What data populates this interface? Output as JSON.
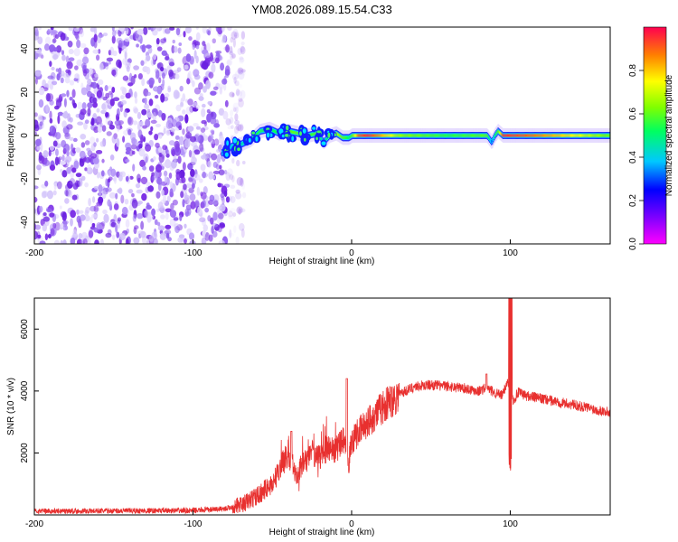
{
  "figure_title": "YM08.2026.089.15.54.C33",
  "colors": {
    "signal": "#e8302f",
    "noise": "#7a2ee6",
    "axis": "#000000"
  },
  "chart_data": [
    {
      "type": "heatmap",
      "name": "spectrogram",
      "xlabel": "Height of straight line (km)",
      "ylabel": "Frequency (Hz)",
      "xlim": [
        -200,
        163
      ],
      "ylim": [
        -50,
        50
      ],
      "xticks": [
        -200,
        -100,
        0,
        100
      ],
      "xtick_labels": [
        "-200",
        "-100",
        "0",
        "100"
      ],
      "yticks": [
        -40,
        -20,
        0,
        20,
        40
      ],
      "ytick_labels": [
        "-40",
        "-20",
        "0",
        "20",
        "40"
      ],
      "noise_region_x": [
        -200,
        -78
      ],
      "ridge": {
        "x": [
          -82,
          -76,
          -70,
          -64,
          -58,
          -52,
          -46,
          -40,
          -34,
          -28,
          -22,
          -18,
          -14,
          -10,
          -6,
          -2,
          0,
          4,
          10,
          30,
          60,
          85,
          88,
          90,
          92,
          95,
          110,
          140,
          163
        ],
        "freq": [
          -8,
          -5,
          -4,
          -2,
          2,
          3,
          1,
          2,
          1,
          0,
          1,
          -3,
          0,
          1,
          -1,
          -1,
          0,
          0,
          0,
          0,
          0,
          0,
          -3,
          0,
          2,
          0,
          0,
          0,
          0
        ],
        "amplitude": [
          0.35,
          0.4,
          0.45,
          0.5,
          0.55,
          0.5,
          0.55,
          0.6,
          0.6,
          0.55,
          0.6,
          0.4,
          0.6,
          0.7,
          0.6,
          0.5,
          0.6,
          0.9,
          0.95,
          0.65,
          0.55,
          0.6,
          0.3,
          0.5,
          0.6,
          0.95,
          0.9,
          0.75,
          0.6
        ]
      },
      "colorbar": {
        "label": "Normalized spectral amplitude",
        "range": [
          0,
          1
        ],
        "ticks": [
          0.0,
          0.2,
          0.4,
          0.6,
          0.8
        ],
        "tick_labels": [
          "0.0",
          "0.2",
          "0.4",
          "0.6",
          "0.8"
        ],
        "colormap": "rainbow"
      }
    },
    {
      "type": "line",
      "name": "snr",
      "xlabel": "Height of straight line (km)",
      "ylabel": "SNR (10 * v/v)",
      "xlim": [
        -200,
        163
      ],
      "ylim": [
        0,
        7000
      ],
      "xticks": [
        -200,
        -100,
        0,
        100
      ],
      "xtick_labels": [
        "-200",
        "-100",
        "0",
        "100"
      ],
      "yticks": [
        2000,
        4000,
        6000
      ],
      "ytick_labels": [
        "2000",
        "4000",
        "6000"
      ],
      "series": [
        {
          "name": "SNR",
          "x": [
            -200,
            -150,
            -100,
            -80,
            -70,
            -60,
            -50,
            -45,
            -40,
            -35,
            -30,
            -25,
            -20,
            -15,
            -10,
            -5,
            -2,
            0,
            5,
            10,
            20,
            30,
            40,
            50,
            60,
            70,
            80,
            85,
            90,
            95,
            98,
            100,
            102,
            105,
            110,
            120,
            130,
            140,
            150,
            163
          ],
          "y": [
            120,
            130,
            140,
            200,
            300,
            600,
            1000,
            1500,
            2000,
            1300,
            1700,
            2000,
            1900,
            2200,
            2100,
            2400,
            1600,
            2400,
            2700,
            3000,
            3500,
            3900,
            4150,
            4200,
            4150,
            4100,
            4000,
            4100,
            3950,
            3850,
            4300,
            4000,
            3700,
            3950,
            3850,
            3750,
            3650,
            3550,
            3450,
            3300
          ]
        }
      ],
      "annotations": [
        {
          "x": -38,
          "y": 2700,
          "label": ""
        },
        {
          "x": -3,
          "y": 4400,
          "label": ""
        },
        {
          "x": 85,
          "y": 4550,
          "label": ""
        },
        {
          "x": 100,
          "y": 7000,
          "label": ""
        },
        {
          "x": 100,
          "y": 1300,
          "label": ""
        }
      ]
    }
  ]
}
